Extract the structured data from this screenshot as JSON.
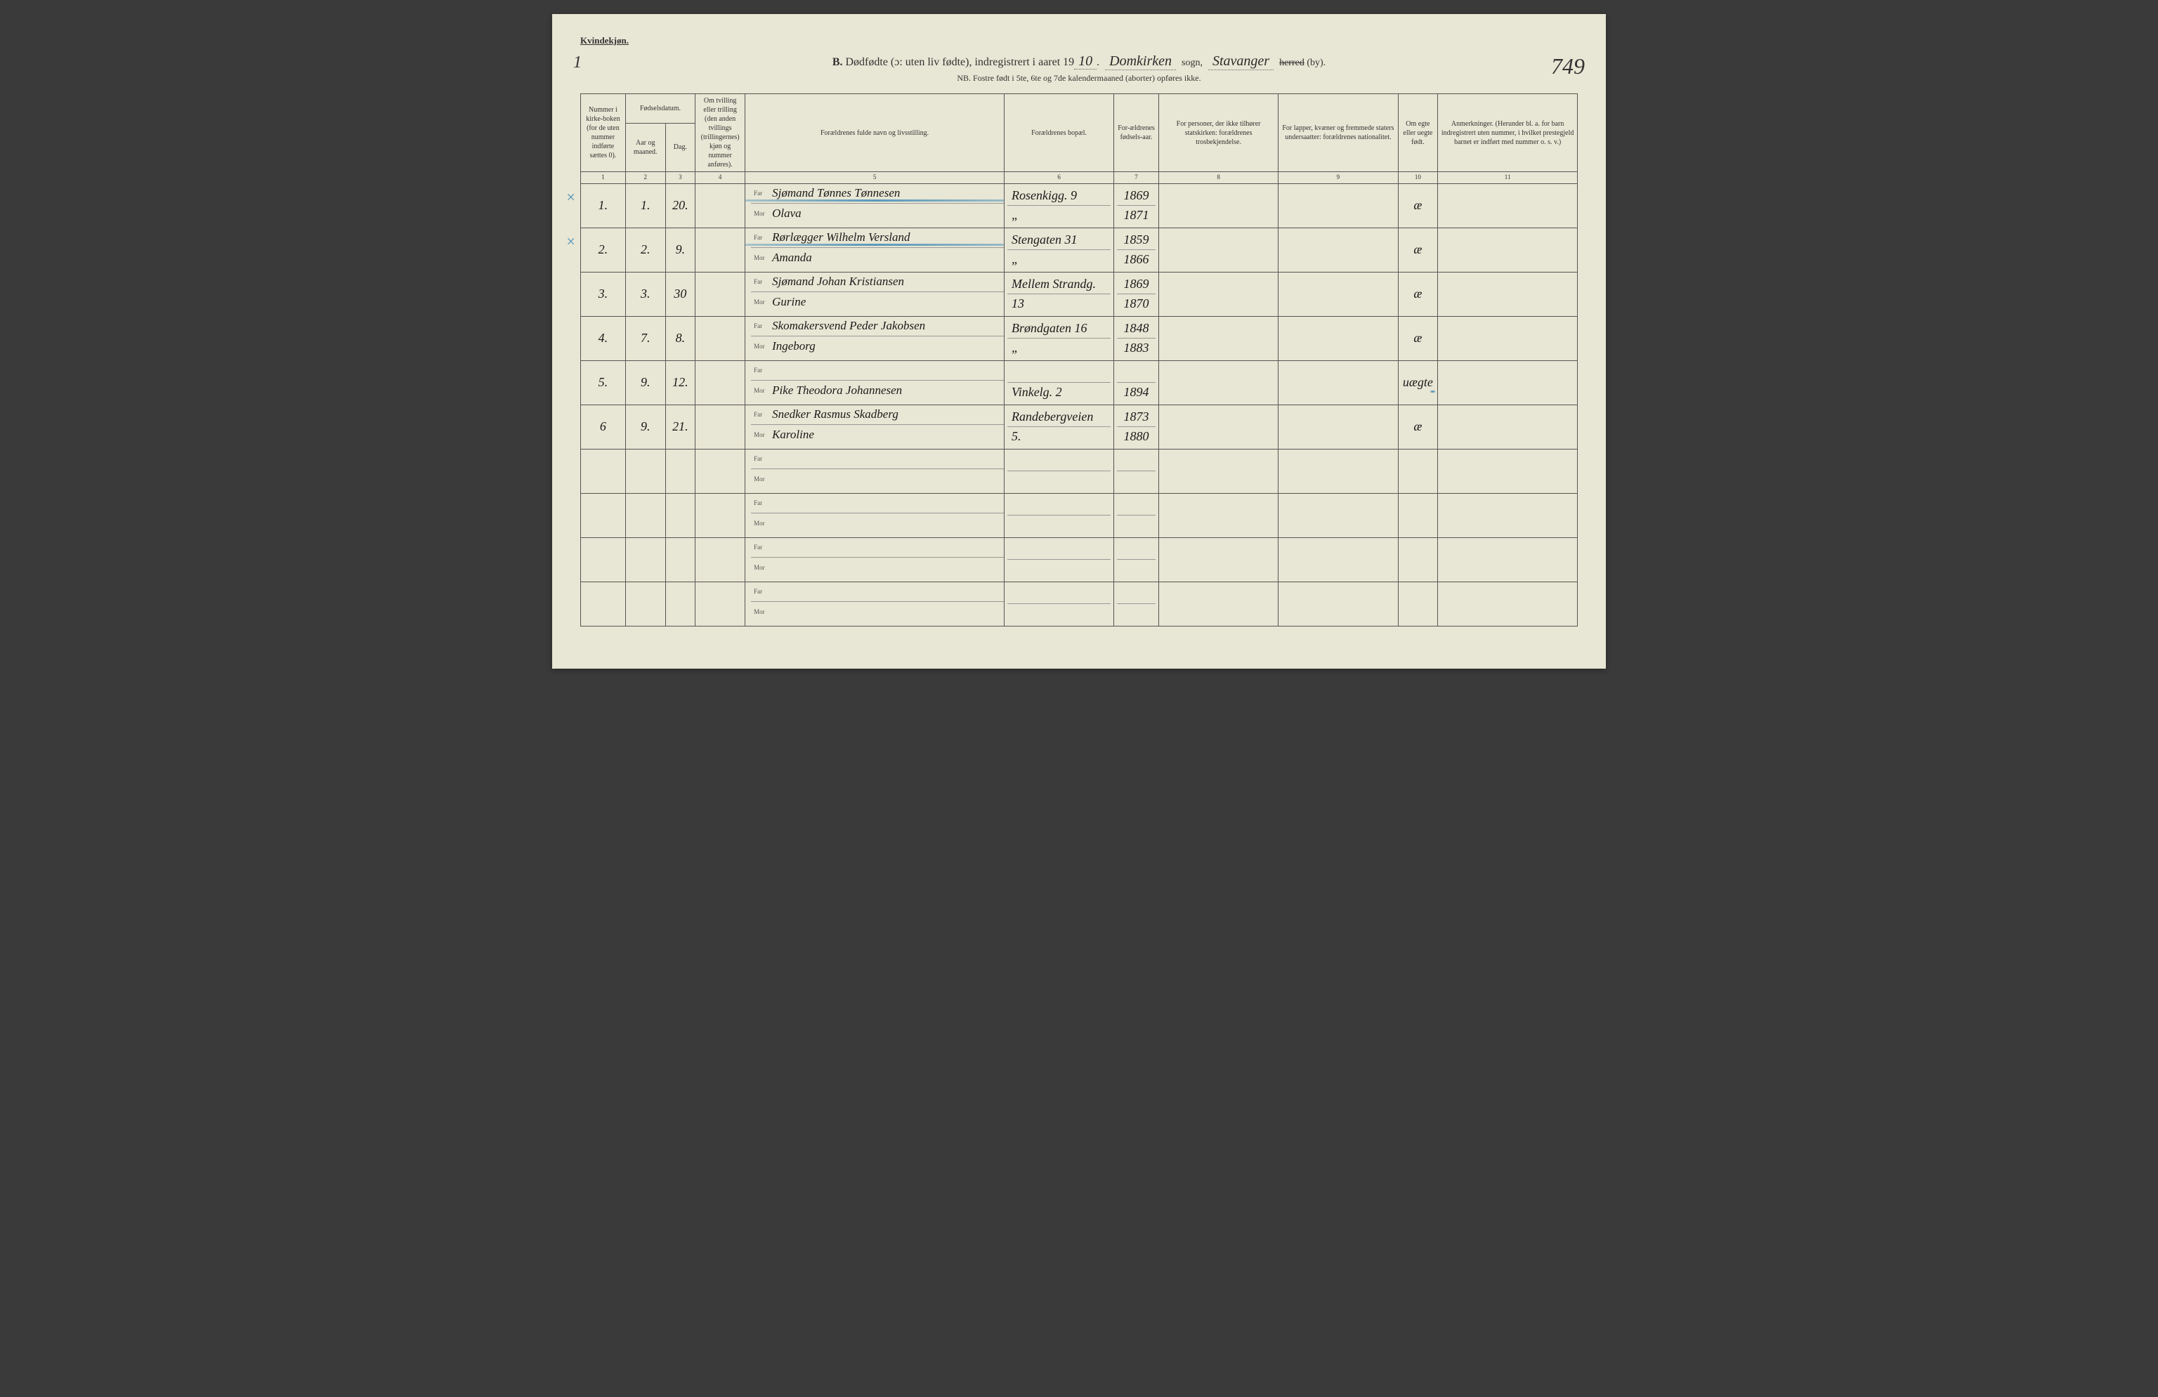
{
  "header": {
    "gender_label": "Kvindekjøn.",
    "page_left": "1",
    "title_prefix": "B.",
    "title_main": "Dødfødte (ɔ: uten liv fødte), indregistrert i aaret 19",
    "year_suffix": "10",
    "parish_hw": "Domkirken",
    "parish_label": "sogn,",
    "district_hw": "Stavanger",
    "district_label_strike": "herred",
    "district_label_suffix": "(by).",
    "page_right": "749",
    "subtitle": "NB. Fostre født i 5te, 6te og 7de kalendermaaned (aborter) opføres ikke."
  },
  "columns": {
    "c1": "Nummer i kirke-boken (for de uten nummer indførte sættes 0).",
    "c2a": "Fødselsdatum.",
    "c2": "Aar og maaned.",
    "c3": "Dag.",
    "c4": "Om tvilling eller trilling (den anden tvillings (trillingernes) kjøn og nummer anføres).",
    "c5": "Forældrenes fulde navn og livsstilling.",
    "c6": "Forældrenes bopæl.",
    "c7": "For-ældrenes fødsels-aar.",
    "c8": "For personer, der ikke tilhører statskirken: forældrenes trosbekjendelse.",
    "c9": "For lapper, kvæner og fremmede staters undersaatter: forældrenes nationalitet.",
    "c10": "Om egte eller uegte født.",
    "c11": "Anmerkninger. (Herunder bl. a. for barn indregistrert uten nummer, i hvilket prestegjeld barnet er indført med nummer o. s. v.)"
  },
  "colnums": [
    "1",
    "2",
    "3",
    "4",
    "5",
    "6",
    "7",
    "8",
    "9",
    "10",
    "11"
  ],
  "farmor": {
    "far": "Far",
    "mor": "Mor"
  },
  "rows": [
    {
      "num": "1.",
      "aar": "1.",
      "dag": "20.",
      "tv": "",
      "far": "Sjømand Tønnes Tønnesen",
      "mor": "Olava",
      "bopael_far": "Rosenkigg. 9",
      "bopael_mor": "„",
      "faar_far": "1869",
      "faar_mor": "1871",
      "c8": "",
      "c9": "",
      "c10": "æ",
      "c11": "",
      "margin": "×",
      "blue": true
    },
    {
      "num": "2.",
      "aar": "2.",
      "dag": "9.",
      "tv": "",
      "far": "Rørlægger Wilhelm Versland",
      "mor": "Amanda",
      "bopael_far": "Stengaten 31",
      "bopael_mor": "„",
      "faar_far": "1859",
      "faar_mor": "1866",
      "c8": "",
      "c9": "",
      "c10": "æ",
      "c11": "",
      "margin": "×",
      "blue": true
    },
    {
      "num": "3.",
      "aar": "3.",
      "dag": "30",
      "tv": "",
      "far": "Sjømand Johan Kristiansen",
      "mor": "Gurine",
      "bopael_far": "Mellem Strandg.",
      "bopael_mor": "13",
      "faar_far": "1869",
      "faar_mor": "1870",
      "c8": "",
      "c9": "",
      "c10": "æ",
      "c11": ""
    },
    {
      "num": "4.",
      "aar": "7.",
      "dag": "8.",
      "tv": "",
      "far": "Skomakersvend Peder Jakobsen",
      "mor": "Ingeborg",
      "bopael_far": "Brøndgaten 16",
      "bopael_mor": "„",
      "faar_far": "1848",
      "faar_mor": "1883",
      "c8": "",
      "c9": "",
      "c10": "æ",
      "c11": ""
    },
    {
      "num": "5.",
      "aar": "9.",
      "dag": "12.",
      "tv": "",
      "far": "",
      "mor": "Pike Theodora Johannesen",
      "bopael_far": "",
      "bopael_mor": "Vinkelg. 2",
      "faar_far": "",
      "faar_mor": "1894",
      "c8": "",
      "c9": "",
      "c10": "uægte",
      "c11": "",
      "blue_short": true
    },
    {
      "num": "6",
      "aar": "9.",
      "dag": "21.",
      "tv": "",
      "far": "Snedker Rasmus Skadberg",
      "mor": "Karoline",
      "bopael_far": "Randebergveien",
      "bopael_mor": "5.",
      "faar_far": "1873",
      "faar_mor": "1880",
      "c8": "",
      "c9": "",
      "c10": "æ",
      "c11": ""
    },
    {
      "empty": true
    },
    {
      "empty": true
    },
    {
      "empty": true
    },
    {
      "empty": true
    }
  ],
  "style": {
    "page_bg": "#e8e6d4",
    "border_color": "#555",
    "text_color": "#333",
    "hw_color": "#1a1a1a",
    "blue_color": "#4a90b8",
    "header_fontsize": 13,
    "title_fontsize": 16,
    "subtitle_fontsize": 12,
    "th_fontsize": 10,
    "hw_fontsize": 18
  }
}
